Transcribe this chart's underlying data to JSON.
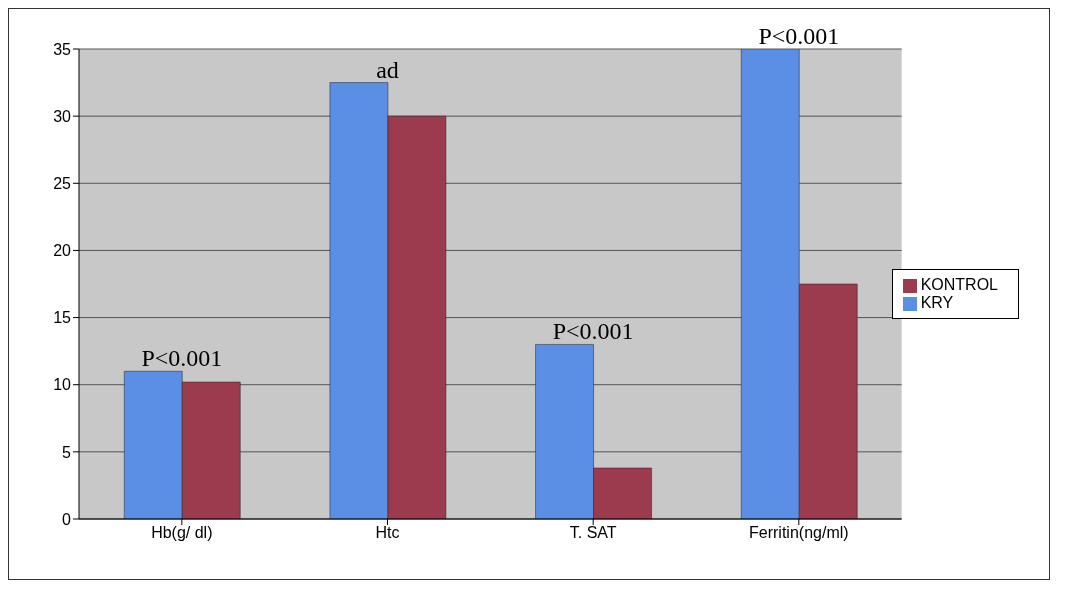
{
  "chart_data": {
    "type": "bar",
    "categories": [
      "Hb(g/ dl)",
      "Htc",
      "T. SAT",
      "Ferritin(ng/ml)"
    ],
    "series": [
      {
        "name": "KRY",
        "color": "#5b8fe6",
        "values": [
          11,
          32.5,
          13,
          35
        ]
      },
      {
        "name": "KONTROL",
        "color": "#9c3a4e",
        "values": [
          10.2,
          30,
          3.8,
          17.5
        ]
      }
    ],
    "ylim": [
      0,
      35
    ],
    "yticks": [
      0,
      5,
      10,
      15,
      20,
      25,
      30,
      35
    ],
    "grid": "y",
    "legend": "right",
    "annotations": [
      {
        "text": "P<0.001",
        "x": "Hb(g/ dl)",
        "y": 11
      },
      {
        "text": "ad",
        "x": "Htc",
        "y": 32.5
      },
      {
        "text": "P<0.001",
        "x": "T. SAT",
        "y": 13
      },
      {
        "text": "P<0.001",
        "x": "Ferritin(ng/ml)",
        "y": 35
      }
    ]
  }
}
